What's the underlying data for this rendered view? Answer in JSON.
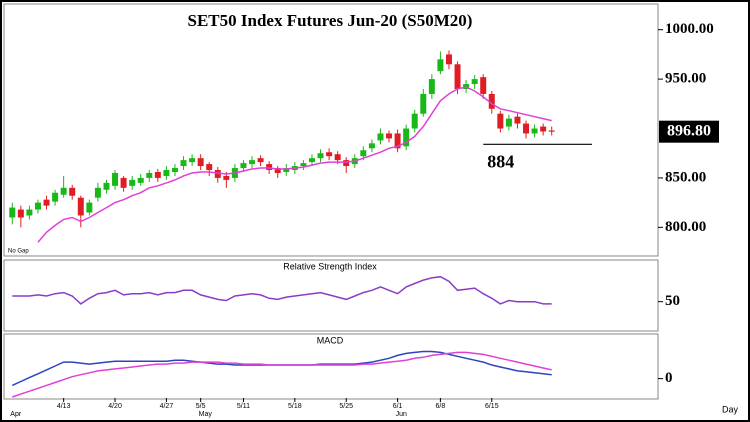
{
  "chart_data": [
    {
      "type": "candlestick",
      "title": "SET50  Index  Futures  Jun-20  (S50M20)",
      "note": "No Gap",
      "x_axis_label": "Day",
      "categories": [
        null,
        null,
        null,
        null,
        null,
        null,
        "4/13",
        null,
        null,
        null,
        null,
        null,
        "4/20",
        null,
        null,
        null,
        null,
        null,
        "4/27",
        null,
        null,
        null,
        "5/5",
        null,
        null,
        null,
        null,
        "5/11",
        null,
        null,
        null,
        null,
        null,
        "5/18",
        null,
        null,
        null,
        null,
        null,
        "5/25",
        null,
        null,
        null,
        null,
        null,
        "6/1",
        null,
        null,
        null,
        null,
        "6/8",
        null,
        null,
        null,
        null,
        null,
        "6/15",
        null,
        null,
        null,
        null,
        null,
        null,
        null
      ],
      "months": [
        "Apr",
        null,
        null,
        null,
        null,
        null,
        null,
        null,
        null,
        null,
        null,
        null,
        null,
        null,
        null,
        null,
        null,
        null,
        null,
        null,
        null,
        null,
        "May",
        null,
        null,
        null,
        null,
        null,
        null,
        null,
        null,
        null,
        null,
        null,
        null,
        null,
        null,
        null,
        null,
        null,
        null,
        null,
        null,
        null,
        null,
        "Jun",
        null,
        null,
        null,
        null,
        null,
        null,
        null,
        null,
        null,
        null,
        null,
        null,
        null,
        null,
        null,
        null,
        null,
        null
      ],
      "open": [
        810,
        818,
        812,
        818,
        828,
        826,
        833,
        840,
        830,
        815,
        830,
        838,
        842,
        850,
        842,
        845,
        850,
        856,
        852,
        856,
        862,
        866,
        870,
        864,
        858,
        852,
        850,
        860,
        864,
        870,
        864,
        860,
        856,
        858,
        862,
        866,
        870,
        876,
        874,
        868,
        864,
        872,
        880,
        888,
        895,
        895,
        882,
        900,
        915,
        935,
        958,
        975,
        965,
        940,
        945,
        952,
        935,
        915,
        902,
        912,
        905,
        895,
        902,
        898
      ],
      "high": [
        825,
        822,
        822,
        828,
        832,
        838,
        852,
        843,
        832,
        828,
        845,
        848,
        858,
        852,
        852,
        854,
        858,
        859,
        862,
        864,
        872,
        874,
        874,
        866,
        861,
        856,
        864,
        868,
        872,
        873,
        867,
        862,
        864,
        866,
        868,
        874,
        879,
        880,
        877,
        871,
        874,
        882,
        889,
        900,
        898,
        899,
        904,
        919,
        940,
        955,
        978,
        979,
        968,
        949,
        954,
        955,
        938,
        918,
        914,
        915,
        908,
        904,
        905,
        902
      ],
      "low": [
        803,
        800,
        808,
        814,
        818,
        822,
        830,
        828,
        800,
        812,
        826,
        834,
        838,
        836,
        838,
        842,
        846,
        846,
        848,
        852,
        858,
        862,
        858,
        852,
        845,
        840,
        846,
        856,
        860,
        862,
        854,
        850,
        852,
        854,
        858,
        862,
        866,
        868,
        864,
        855,
        860,
        868,
        876,
        884,
        886,
        876,
        878,
        896,
        912,
        930,
        955,
        960,
        935,
        936,
        940,
        930,
        915,
        896,
        898,
        900,
        890,
        891,
        893,
        893
      ],
      "close": [
        820,
        810,
        818,
        825,
        822,
        835,
        840,
        832,
        812,
        825,
        840,
        845,
        855,
        840,
        848,
        850,
        855,
        850,
        858,
        860,
        868,
        870,
        862,
        858,
        850,
        848,
        860,
        865,
        868,
        866,
        858,
        855,
        860,
        862,
        865,
        870,
        875,
        872,
        868,
        862,
        870,
        878,
        885,
        895,
        890,
        880,
        900,
        915,
        935,
        950,
        970,
        965,
        940,
        945,
        950,
        935,
        920,
        900,
        910,
        905,
        895,
        900,
        897,
        896.8
      ],
      "up_color": "#18b818",
      "down_color": "#e01c24",
      "moving_average": {
        "color": "#e040d8",
        "values": [
          null,
          null,
          null,
          785,
          795,
          802,
          808,
          810,
          806,
          810,
          815,
          820,
          825,
          828,
          832,
          835,
          840,
          842,
          845,
          848,
          852,
          855,
          856,
          856,
          855,
          854,
          855,
          857,
          859,
          860,
          860,
          859,
          859,
          860,
          861,
          863,
          865,
          866,
          866,
          866,
          867,
          870,
          873,
          876,
          880,
          882,
          886,
          892,
          902,
          915,
          928,
          935,
          940,
          942,
          938,
          932,
          925,
          920,
          918,
          916,
          914,
          912,
          910,
          908
        ]
      },
      "ylim": [
        772,
        1025
      ],
      "yticks": [
        {
          "value": 800,
          "label": "800.00"
        },
        {
          "value": 850,
          "label": "850.00"
        },
        {
          "value": 950,
          "label": "950.00"
        },
        {
          "value": 1000,
          "label": "1000.00"
        }
      ],
      "last": {
        "value": 896.8,
        "label": "896.80"
      },
      "support": 884
    },
    {
      "type": "line",
      "title": "Relative Strength Index",
      "color": "#8a3cc8",
      "values": [
        55,
        55,
        55,
        56,
        55,
        57,
        58,
        55,
        48,
        53,
        57,
        58,
        60,
        56,
        57,
        57,
        58,
        56,
        58,
        58,
        60,
        60,
        56,
        54,
        52,
        51,
        55,
        56,
        57,
        56,
        53,
        52,
        54,
        55,
        56,
        57,
        58,
        56,
        54,
        52,
        55,
        58,
        60,
        63,
        60,
        57,
        63,
        66,
        69,
        71,
        72,
        68,
        60,
        61,
        62,
        57,
        53,
        48,
        51,
        50,
        50,
        50,
        48,
        48
      ],
      "ylim": [
        25,
        85
      ],
      "yticks": [
        50
      ]
    },
    {
      "type": "line",
      "title": "MACD",
      "series": [
        {
          "color": "#2c44c0",
          "values": [
            -7,
            -3,
            1,
            5,
            9,
            13,
            17,
            17,
            16,
            15,
            16,
            17,
            18,
            18,
            18,
            18,
            18,
            18,
            18,
            19,
            19,
            18,
            17,
            16,
            15,
            15,
            14,
            14,
            14,
            14,
            14,
            14,
            14,
            14,
            14,
            14,
            15,
            15,
            15,
            15,
            15,
            16,
            17,
            19,
            21,
            24,
            26,
            27,
            28,
            28,
            27,
            25,
            23,
            21,
            19,
            17,
            14,
            12,
            10,
            8,
            7,
            6,
            5,
            4
          ]
        },
        {
          "color": "#e040d8",
          "values": [
            -19,
            -16,
            -13,
            -10,
            -7,
            -4,
            -1,
            2,
            4,
            6,
            8,
            9,
            10,
            11,
            12,
            13,
            14,
            15,
            15,
            16,
            16,
            17,
            17,
            17,
            17,
            16,
            16,
            15,
            15,
            15,
            14,
            14,
            14,
            14,
            14,
            14,
            14,
            14,
            14,
            14,
            14,
            15,
            15,
            16,
            17,
            18,
            19,
            21,
            22,
            24,
            25,
            26,
            27,
            27,
            26,
            25,
            23,
            21,
            19,
            17,
            15,
            13,
            11,
            9
          ]
        }
      ],
      "ylim": [
        -20,
        45
      ],
      "yticks": [
        0
      ]
    }
  ]
}
